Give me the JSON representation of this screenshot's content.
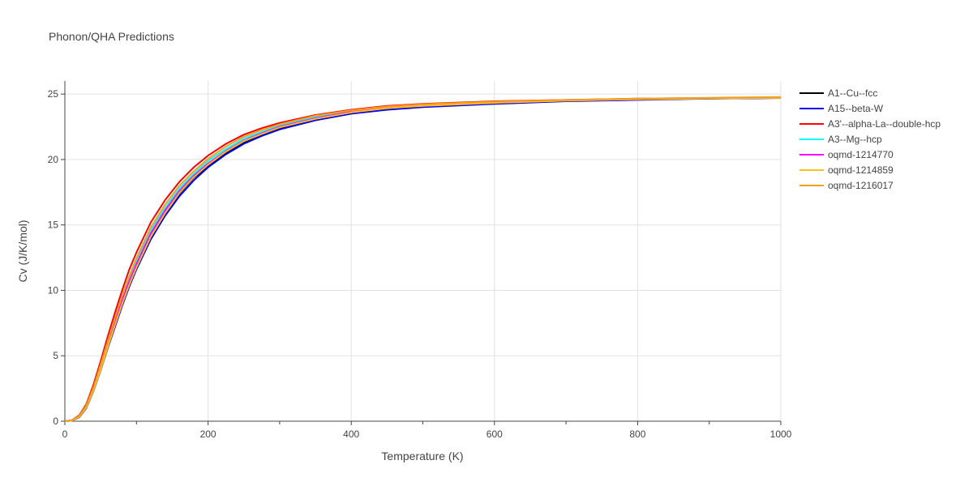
{
  "chart_data": {
    "type": "line",
    "title": "Phonon/QHA Predictions",
    "xlabel": "Temperature (K)",
    "ylabel": "Cv (J/K/mol)",
    "xlim": [
      0,
      1000
    ],
    "ylim": [
      0,
      26
    ],
    "xticks": [
      0,
      200,
      400,
      600,
      800,
      1000
    ],
    "yticks": [
      0,
      5,
      10,
      15,
      20,
      25
    ],
    "grid": true,
    "legend_position": "right",
    "x": [
      0,
      10,
      20,
      30,
      40,
      50,
      60,
      70,
      80,
      90,
      100,
      120,
      140,
      160,
      180,
      200,
      225,
      250,
      275,
      300,
      350,
      400,
      450,
      500,
      600,
      700,
      800,
      900,
      1000
    ],
    "series": [
      {
        "name": "A1--Cu--fcc",
        "color": "#000000",
        "values": [
          0,
          0.05,
          0.35,
          1.1,
          2.4,
          4.0,
          5.7,
          7.4,
          9.0,
          10.5,
          11.8,
          14.1,
          15.9,
          17.4,
          18.6,
          19.5,
          20.5,
          21.3,
          21.9,
          22.4,
          23.1,
          23.6,
          23.9,
          24.1,
          24.3,
          24.5,
          24.6,
          24.65,
          24.7
        ]
      },
      {
        "name": "A15--beta-W",
        "color": "#0000ff",
        "values": [
          0,
          0.05,
          0.3,
          1.0,
          2.3,
          3.9,
          5.6,
          7.2,
          8.8,
          10.3,
          11.6,
          13.9,
          15.7,
          17.2,
          18.4,
          19.4,
          20.4,
          21.2,
          21.8,
          22.3,
          23.0,
          23.5,
          23.8,
          24.0,
          24.25,
          24.45,
          24.55,
          24.65,
          24.7
        ]
      },
      {
        "name": "A3'--alpha-La--double-hcp",
        "color": "#ff0000",
        "values": [
          0,
          0.08,
          0.45,
          1.3,
          2.8,
          4.6,
          6.5,
          8.3,
          10.0,
          11.6,
          12.9,
          15.2,
          16.9,
          18.3,
          19.4,
          20.3,
          21.2,
          21.9,
          22.4,
          22.8,
          23.4,
          23.8,
          24.1,
          24.25,
          24.45,
          24.55,
          24.65,
          24.7,
          24.75
        ]
      },
      {
        "name": "A3--Mg--hcp",
        "color": "#00ffff",
        "values": [
          0,
          0.06,
          0.38,
          1.15,
          2.5,
          4.2,
          6.0,
          7.7,
          9.4,
          10.9,
          12.2,
          14.6,
          16.3,
          17.8,
          18.9,
          19.9,
          20.8,
          21.6,
          22.1,
          22.6,
          23.25,
          23.7,
          24.0,
          24.15,
          24.38,
          24.52,
          24.62,
          24.68,
          24.72
        ]
      },
      {
        "name": "oqmd-1214770",
        "color": "#ff00ff",
        "values": [
          0,
          0.06,
          0.36,
          1.12,
          2.45,
          4.1,
          5.85,
          7.55,
          9.2,
          10.7,
          12.0,
          14.35,
          16.1,
          17.6,
          18.75,
          19.7,
          20.65,
          21.45,
          22.0,
          22.5,
          23.15,
          23.65,
          23.95,
          24.12,
          24.35,
          24.5,
          24.6,
          24.67,
          24.72
        ]
      },
      {
        "name": "oqmd-1214859",
        "color": "#ffc020",
        "values": [
          0,
          0.05,
          0.33,
          1.05,
          2.35,
          3.95,
          5.7,
          7.35,
          8.95,
          10.45,
          11.75,
          14.1,
          15.9,
          17.45,
          18.65,
          19.6,
          20.6,
          21.4,
          21.95,
          22.45,
          23.1,
          23.6,
          23.92,
          24.1,
          24.33,
          24.5,
          24.6,
          24.67,
          24.72
        ]
      },
      {
        "name": "oqmd-1216017",
        "color": "#f0a020",
        "values": [
          0,
          0.07,
          0.4,
          1.2,
          2.6,
          4.35,
          6.15,
          7.9,
          9.6,
          11.1,
          12.45,
          14.8,
          16.55,
          18.0,
          19.1,
          20.05,
          21.0,
          21.75,
          22.25,
          22.7,
          23.35,
          23.75,
          24.05,
          24.22,
          24.42,
          24.55,
          24.65,
          24.72,
          24.78
        ]
      }
    ]
  }
}
